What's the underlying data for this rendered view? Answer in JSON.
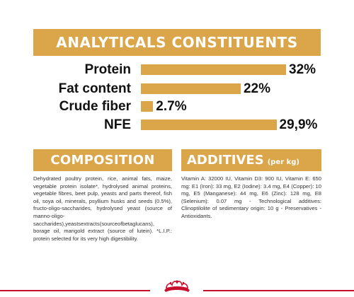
{
  "analytics": {
    "title": "ANALYTICALS CONSTITUENTS",
    "rows": [
      {
        "label": "Protein",
        "value": "32%",
        "amount": 32
      },
      {
        "label": "Fat content",
        "value": "22%",
        "amount": 22
      },
      {
        "label": "Crude fiber",
        "value": "2.7%",
        "amount": 2.7
      },
      {
        "label": "NFE",
        "value": "29,9%",
        "amount": 29.9
      }
    ]
  },
  "composition": {
    "title": "COMPOSITION",
    "text": "Dehydrated poultry protein, rice, animal fats, maize, vegetable protein isolate*, hydrolysed animal proteins, vegetable fibres, beet pulp, yeasts and parts thereof, fish oil, soya oil, minerals, psyllium husks and seeds (0.5%), fructo-oligo-saccharides, hydrolysed yeast (source of manno-oligo-saccharides),yeastsextracts(sourceofbetaglucans), borage oil, marigold extract (source of lutein). *L.I.P.: protein selected for its very high digestibility."
  },
  "additives": {
    "title": "ADDITIVES",
    "subtitle": "(per kg)",
    "text": "Vitamin A: 32000 IU, Vitamin D3: 900 IU, Vitamin E: 650 mg: E1 (Iron): 33 mg, E2 (Iodine): 3.4 mg, E4 (Copper): 10 mg, E5 (Manganese): 44 mg, E6 (Zinc): 128 mg, E8 (Selenium): 0.07 mg - Technological additives: Clinoptilolite of sedimentary origin: 10 g - Preservatives - Antioxidants."
  },
  "footer": {
    "logo_icon": "royal-canin-crown-icon"
  },
  "colors": {
    "accent": "#dba64a",
    "brand_red": "#c8102e",
    "text": "#111111"
  }
}
